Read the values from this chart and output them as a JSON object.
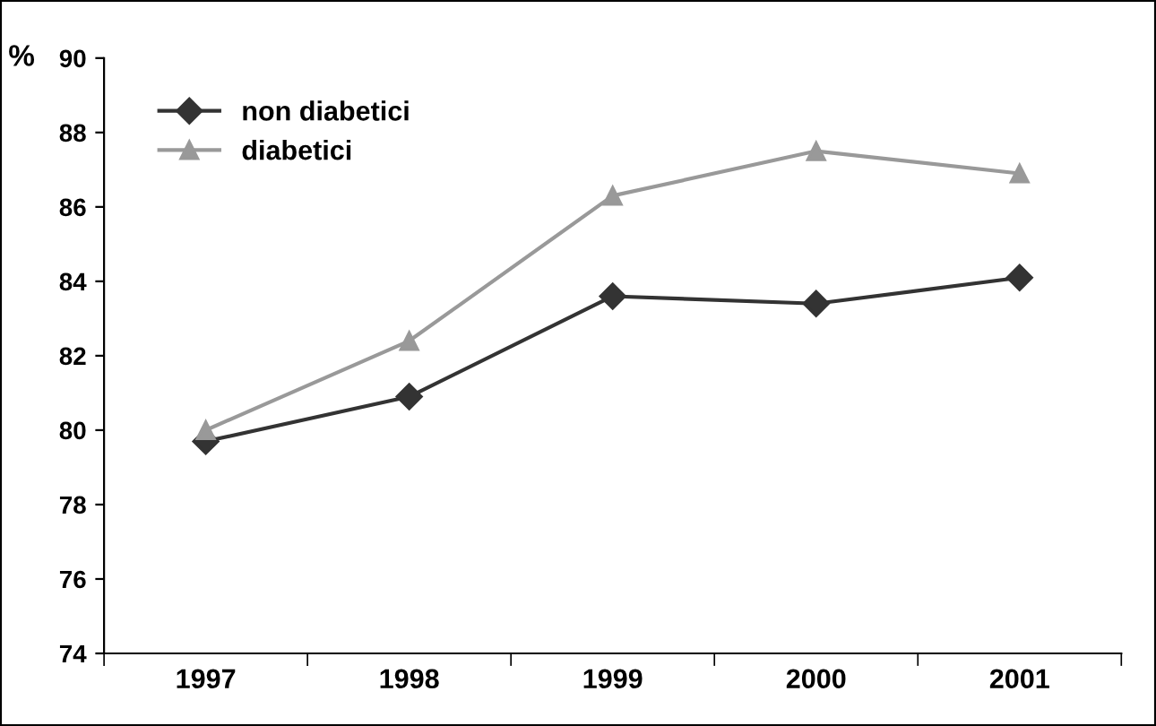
{
  "chart_data": {
    "type": "line",
    "ylabel": "%",
    "categories": [
      "1997",
      "1998",
      "1999",
      "2000",
      "2001"
    ],
    "series": [
      {
        "name": "non diabetici",
        "color": "#333333",
        "marker": "diamond",
        "values": [
          79.7,
          80.9,
          83.6,
          83.4,
          84.1
        ]
      },
      {
        "name": "diabetici",
        "color": "#999999",
        "marker": "triangle",
        "values": [
          80.0,
          82.4,
          86.3,
          87.5,
          86.9
        ]
      }
    ],
    "ylim": [
      74,
      90
    ],
    "yticks": [
      74,
      76,
      78,
      80,
      82,
      84,
      86,
      88,
      90
    ],
    "grid": false,
    "legend": "top left",
    "line_style": "solid"
  }
}
